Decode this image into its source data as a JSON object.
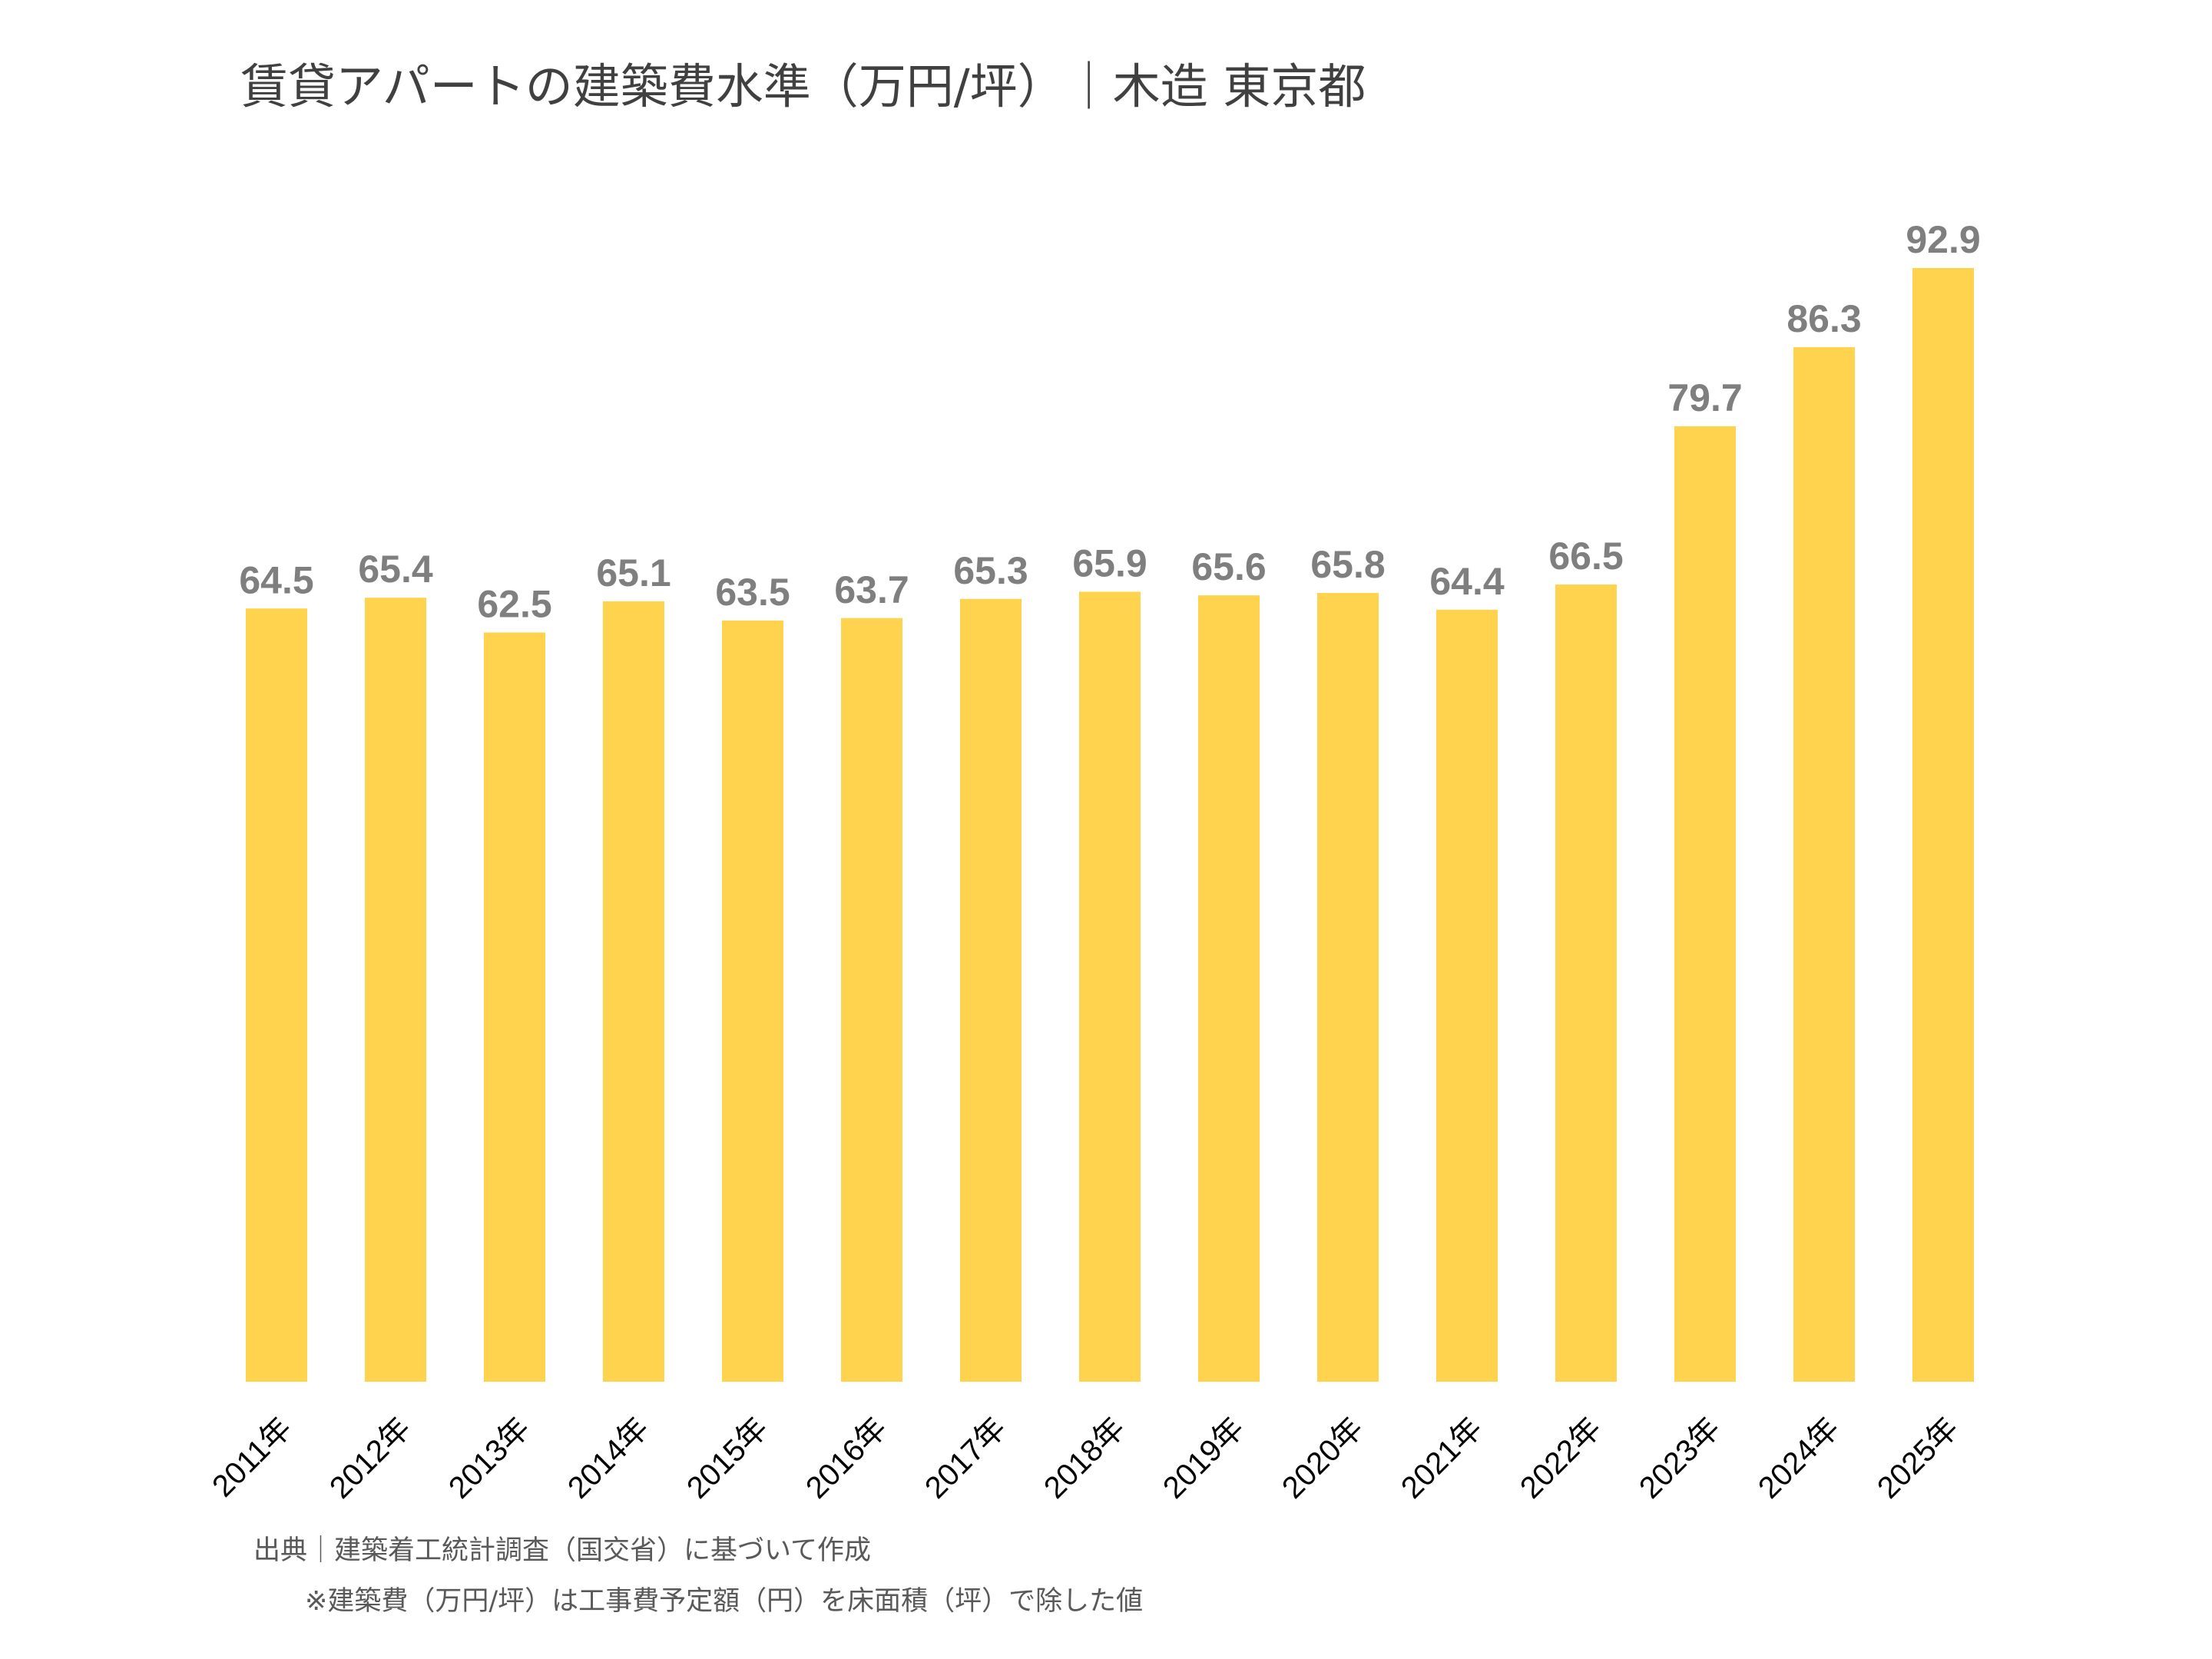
{
  "chart_data": {
    "type": "bar",
    "title": "賃貸アパートの建築費水準（万円/坪）｜木造 東京都",
    "categories": [
      "2011年",
      "2012年",
      "2013年",
      "2014年",
      "2015年",
      "2016年",
      "2017年",
      "2018年",
      "2019年",
      "2020年",
      "2021年",
      "2022年",
      "2023年",
      "2024年",
      "2025年"
    ],
    "values": [
      64.5,
      65.4,
      62.5,
      65.1,
      63.5,
      63.7,
      65.3,
      65.9,
      65.6,
      65.8,
      64.4,
      66.5,
      79.7,
      86.3,
      92.9
    ],
    "xlabel": "",
    "ylabel": "",
    "ylim": [
      0,
      92.9
    ],
    "grid": false,
    "data_labels": true,
    "bar_color": "#FFD34D",
    "label_color": "#7F7F7F"
  },
  "notes": {
    "source": "出典｜建築着工統計調査（国交省）に基づいて作成",
    "footnote": "※建築費（万円/坪）は工事費予定額（円）を床面積（坪）で除した値"
  }
}
